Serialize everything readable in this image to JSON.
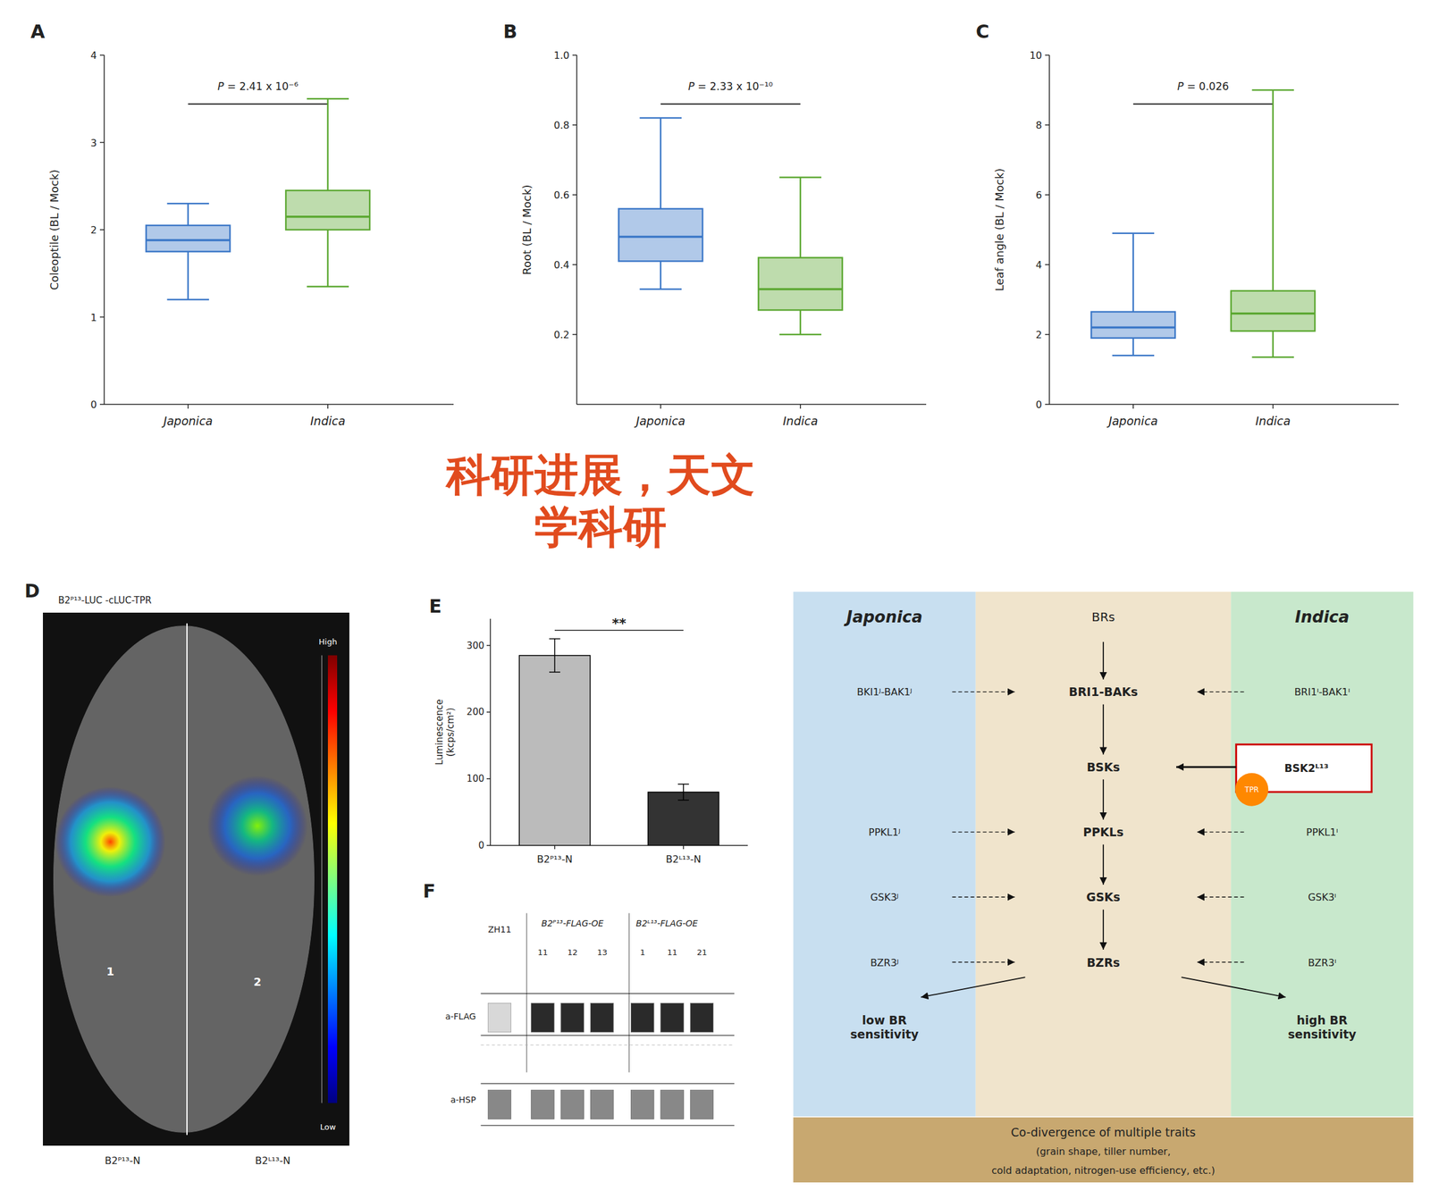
{
  "chart_data": [
    {
      "type": "box",
      "title": "A",
      "ylabel": "Coleoptile (BL / Mock)",
      "categories": [
        "Japonica",
        "Indica"
      ],
      "whisker_low": [
        1.2,
        1.35
      ],
      "q1": [
        1.75,
        2.0
      ],
      "median": [
        1.88,
        2.15
      ],
      "q3": [
        2.05,
        2.45
      ],
      "whisker_high": [
        2.3,
        3.5
      ],
      "colors": [
        "#3c78c8",
        "#5ca832"
      ],
      "ylim": [
        0,
        4
      ],
      "yticks": [
        0,
        1,
        2,
        3,
        4
      ],
      "annotations": [
        "P = 2.41 x 10⁻⁶"
      ]
    },
    {
      "type": "box",
      "title": "B",
      "ylabel": "Root (BL / Mock)",
      "categories": [
        "Japonica",
        "Indica"
      ],
      "whisker_low": [
        0.33,
        0.2
      ],
      "q1": [
        0.41,
        0.27
      ],
      "median": [
        0.48,
        0.33
      ],
      "q3": [
        0.56,
        0.42
      ],
      "whisker_high": [
        0.82,
        0.65
      ],
      "colors": [
        "#3c78c8",
        "#5ca832"
      ],
      "ylim": [
        0.0,
        1.0
      ],
      "yticks": [
        0.2,
        0.4,
        0.6,
        0.8,
        {
          "value": 1.0,
          "label": "1.0"
        }
      ],
      "annotations": [
        "P = 2.33 x 10⁻¹⁰"
      ]
    },
    {
      "type": "box",
      "title": "C",
      "ylabel": "Leaf angle (BL / Mock)",
      "categories": [
        "Japonica",
        "Indica"
      ],
      "whisker_low": [
        1.4,
        1.35
      ],
      "q1": [
        1.9,
        2.1
      ],
      "median": [
        2.2,
        2.6
      ],
      "q3": [
        2.65,
        3.25
      ],
      "whisker_high": [
        4.9,
        9.0
      ],
      "colors": [
        "#3c78c8",
        "#5ca832"
      ],
      "ylim": [
        0,
        10
      ],
      "yticks": [
        0,
        2,
        4,
        6,
        8,
        10
      ],
      "annotations": [
        "P = 0.026"
      ]
    },
    {
      "type": "diagram",
      "title": "D",
      "annotations": [
        "B2ᴾ¹³-LUC  -cLUC-TPR",
        "1",
        "2",
        "High",
        "Low",
        "B2ᴾ¹³-N",
        "B2ᴸ¹³-N"
      ]
    },
    {
      "type": "bar",
      "title": "E",
      "ylabel": "Luminescence\n(kcps/cm²)",
      "categories": [
        "B2ᴾ¹³-N",
        "B2ᴸ¹³-N"
      ],
      "values": [
        285,
        80
      ],
      "errors": [
        25,
        12
      ],
      "colors": [
        "#bbbbbb",
        "#333333"
      ],
      "ylim": [
        0,
        340
      ],
      "yticks": [
        0,
        100,
        200,
        300
      ],
      "annotations": [
        "**"
      ]
    },
    {
      "type": "diagram",
      "title": "F",
      "annotations": [
        "ZH11",
        "B2ᴾ¹³-FLAG-OE",
        "B2ᴸ¹³-FLAG-OE",
        "11",
        "12",
        "13",
        "1",
        "11",
        "21",
        "a-FLAG",
        "a-HSP"
      ]
    },
    {
      "type": "diagram",
      "colors": [
        "#c8dff0",
        "#f0e4cc",
        "#c8e8cc",
        "#c8a870",
        "#cc0000",
        "#ff8800"
      ],
      "annotations": [
        "Japonica",
        "Indica",
        "BRs",
        "BRI1-BAKs",
        "BSKs",
        "PPKLs",
        "GSKs",
        "BZRs",
        "BKI1ᴶ-BAK1ᴶ",
        "PPKL1ᴶ",
        "GSK3ᴶ",
        "BZR3ᴶ",
        "BRI1ᴵ-BAK1ᴵ",
        "PPKL1ᴵ",
        "GSK3ᴵ",
        "BZR3ᴵ",
        "BSK2ᴸ¹³",
        "TPR",
        "low BR\nsensitivity",
        "high BR\nsensitivity",
        "Co-divergence of multiple traits",
        "(grain shape, tiller number,",
        "cold adaptation, nitrogen-use efficiency, etc.)"
      ]
    },
    {
      "type": "watermark",
      "color": "#dd3300",
      "annotations": [
        "科研进展，天文",
        "学科研"
      ]
    }
  ]
}
